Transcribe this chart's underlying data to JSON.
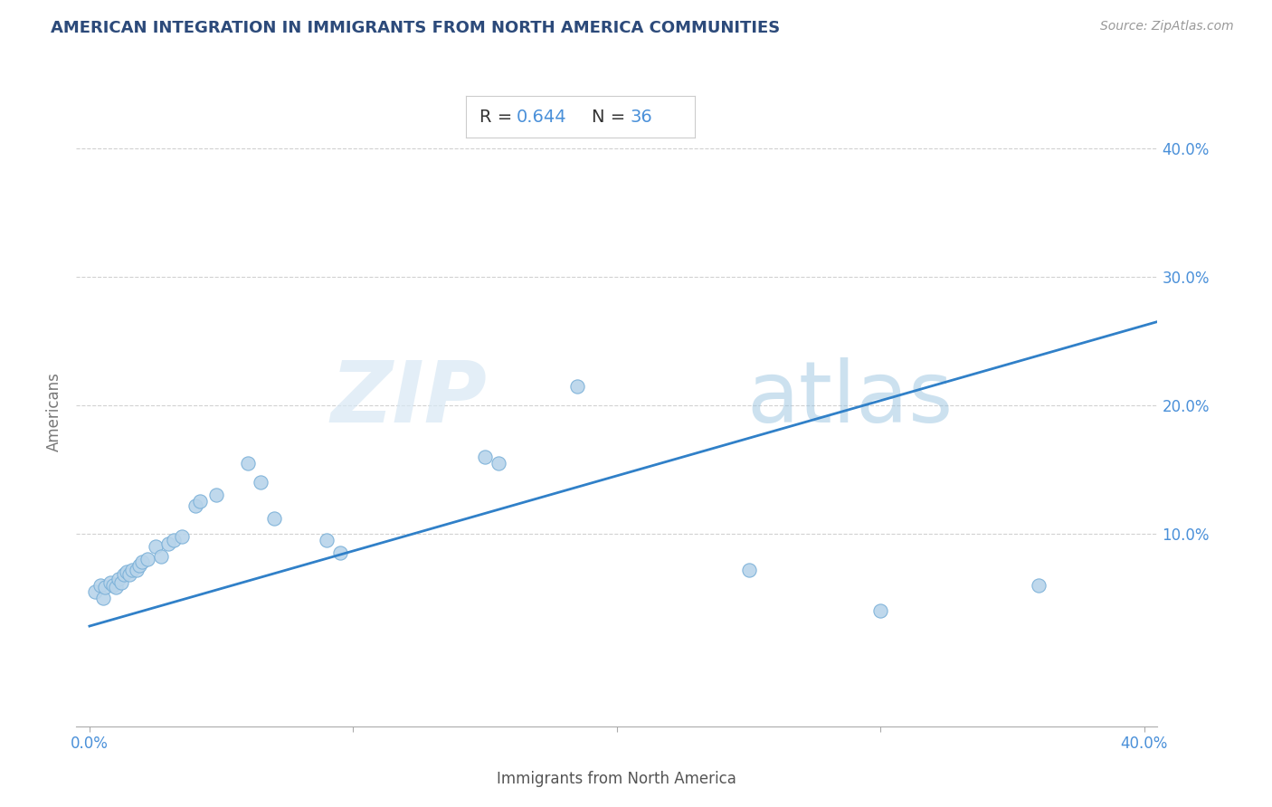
{
  "title": "AMERICAN INTEGRATION IN IMMIGRANTS FROM NORTH AMERICA COMMUNITIES",
  "source": "Source: ZipAtlas.com",
  "xlabel": "Immigrants from North America",
  "ylabel": "Americans",
  "R": "0.644",
  "N": "36",
  "xlim": [
    -0.005,
    0.405
  ],
  "ylim": [
    -0.05,
    0.44
  ],
  "xticks": [
    0.0,
    0.1,
    0.2,
    0.3,
    0.4
  ],
  "yticks": [
    0.1,
    0.2,
    0.3,
    0.4
  ],
  "xticklabels": [
    "0.0%",
    "",
    "",
    "",
    "40.0%"
  ],
  "yticklabels": [
    "10.0%",
    "20.0%",
    "30.0%",
    "40.0%"
  ],
  "scatter_color": "#b8d4ea",
  "scatter_edge_color": "#7ab0d8",
  "line_color": "#3080c8",
  "watermark_zip": "ZIP",
  "watermark_atlas": "atlas",
  "background_color": "#ffffff",
  "grid_color": "#cccccc",
  "title_color": "#2c4a7a",
  "label_color": "#4a90d9",
  "scatter_x": [
    0.002,
    0.004,
    0.005,
    0.006,
    0.008,
    0.009,
    0.01,
    0.011,
    0.012,
    0.013,
    0.014,
    0.015,
    0.016,
    0.018,
    0.019,
    0.02,
    0.022,
    0.025,
    0.027,
    0.03,
    0.032,
    0.035,
    0.04,
    0.042,
    0.048,
    0.06,
    0.065,
    0.07,
    0.09,
    0.095,
    0.15,
    0.155,
    0.185,
    0.25,
    0.3,
    0.36
  ],
  "scatter_y": [
    0.055,
    0.06,
    0.05,
    0.058,
    0.062,
    0.06,
    0.058,
    0.065,
    0.062,
    0.068,
    0.07,
    0.068,
    0.072,
    0.072,
    0.075,
    0.078,
    0.08,
    0.09,
    0.082,
    0.092,
    0.095,
    0.098,
    0.122,
    0.125,
    0.13,
    0.155,
    0.14,
    0.112,
    0.095,
    0.085,
    0.16,
    0.155,
    0.215,
    0.072,
    0.04,
    0.06
  ],
  "line_x0": 0.0,
  "line_x1": 0.405,
  "line_y0": 0.028,
  "line_y1": 0.265
}
